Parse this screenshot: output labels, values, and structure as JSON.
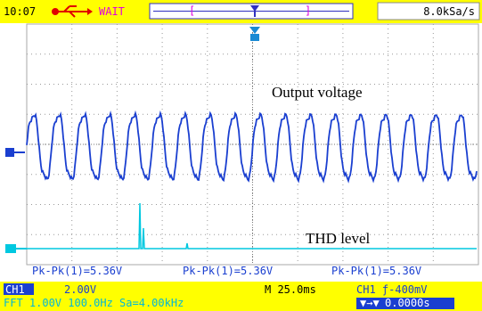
{
  "status_bar": {
    "time": "10:07",
    "mode": "WAIT",
    "sample_rate": "8.0kSa/s"
  },
  "annotations": {
    "output": "Output voltage",
    "thd": "THD level"
  },
  "measurements": [
    "Pk-Pk(1)=5.36V",
    "Pk-Pk(1)=5.36V",
    "Pk-Pk(1)=5.36V"
  ],
  "footer": {
    "ch1_label": "CH1",
    "ch1_scale": "2.00V",
    "timebase": "M 25.0ms",
    "trigger": "CH1 ƒ-400mV",
    "fft": "FFT 1.00V 100.0Hz Sa=4.00kHz",
    "trigger_pos": "0.0000s"
  }
}
